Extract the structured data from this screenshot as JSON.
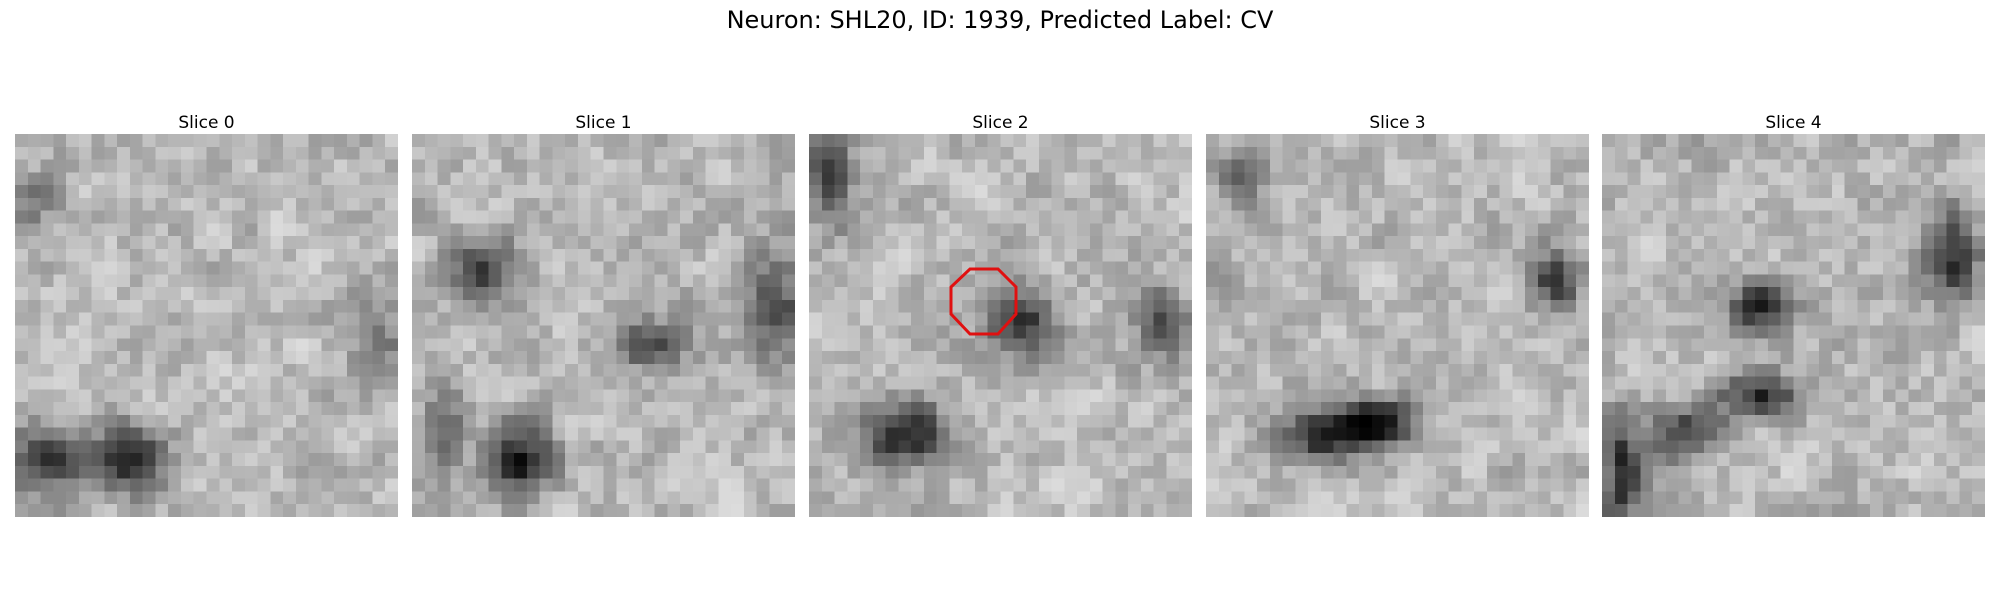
{
  "figure": {
    "title": "Neuron: SHL20, ID: 1939, Predicted Label: CV"
  },
  "panels": [
    {
      "label": "Slice 0"
    },
    {
      "label": "Slice 1"
    },
    {
      "label": "Slice 2",
      "roi": {
        "shape": "octagon",
        "color": "#e01010"
      }
    },
    {
      "label": "Slice 3"
    },
    {
      "label": "Slice 4"
    }
  ],
  "colormap": "gray"
}
